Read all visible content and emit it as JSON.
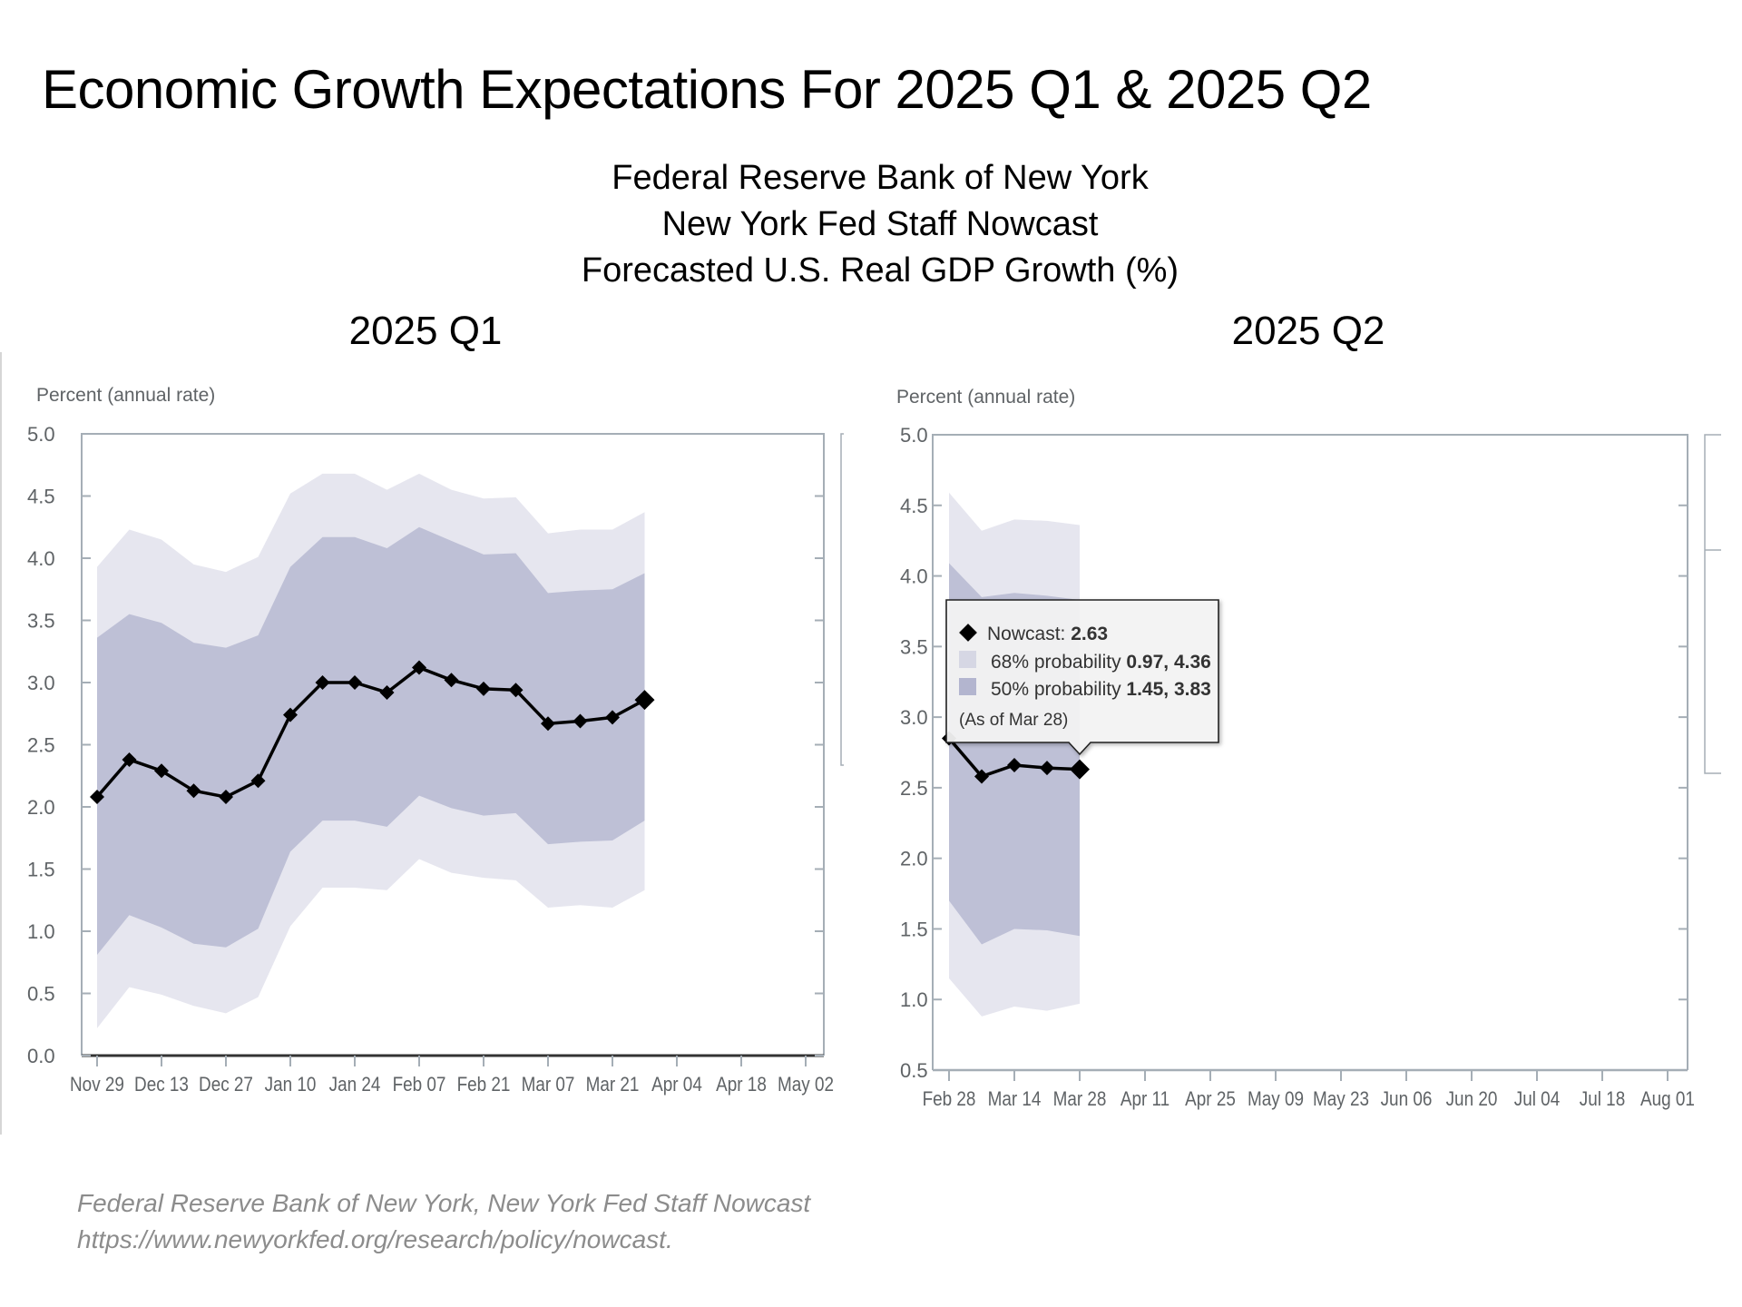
{
  "slide": {
    "title": "Economic Growth Expectations For 2025 Q1 & 2025 Q2",
    "subtitle_lines": [
      "Federal Reserve Bank of New York",
      "New York Fed Staff Nowcast",
      "Forecasted U.S. Real GDP Growth (%)"
    ],
    "panel_titles": [
      "2025 Q1",
      "2025 Q2"
    ],
    "footer_lines": [
      "Federal Reserve Bank of New York, New York Fed Staff Nowcast",
      "https://www.newyorkfed.org/research/policy/nowcast."
    ]
  },
  "colors": {
    "band_68": "#E6E6EF",
    "band_50": "#BEC0D6",
    "line": "#000000",
    "axis": "#A5AEB6",
    "axis_text": "#5F6366"
  },
  "tooltip": {
    "nowcast_label": "Nowcast: ",
    "nowcast_value": "2.63",
    "p68_label": "68% probability ",
    "p68_value": "0.97, 4.36",
    "p50_label": "50% probability ",
    "p50_value": "1.45, 3.83",
    "as_of": "(As of Mar 28)"
  },
  "chart_data": [
    {
      "type": "area",
      "title": "2025 Q1",
      "ylabel": "Percent (annual rate)",
      "xlabel": "",
      "ylim": [
        0.0,
        5.0
      ],
      "yticks": [
        "0.0",
        "0.5",
        "1.0",
        "1.5",
        "2.0",
        "2.5",
        "3.0",
        "3.5",
        "4.0",
        "4.5",
        "5.0"
      ],
      "xticks": [
        "Nov 29",
        "Dec 13",
        "Dec 27",
        "Jan 10",
        "Jan 24",
        "Feb 07",
        "Feb 21",
        "Mar 07",
        "Mar 21",
        "Apr 04",
        "Apr 18",
        "May 02"
      ],
      "x": [
        "Nov 29",
        "Dec 06",
        "Dec 13",
        "Dec 20",
        "Dec 27",
        "Jan 03",
        "Jan 10",
        "Jan 17",
        "Jan 24",
        "Jan 31",
        "Feb 07",
        "Feb 14",
        "Feb 21",
        "Feb 28",
        "Mar 07",
        "Mar 14",
        "Mar 21",
        "Mar 28"
      ],
      "series": [
        {
          "name": "Nowcast",
          "values": [
            2.08,
            2.38,
            2.29,
            2.13,
            2.08,
            2.21,
            2.74,
            3.0,
            3.0,
            2.92,
            3.12,
            3.02,
            2.95,
            2.94,
            2.67,
            2.69,
            2.72,
            2.86
          ]
        },
        {
          "name": "68% probability low",
          "values": [
            0.22,
            0.55,
            0.49,
            0.4,
            0.34,
            0.47,
            1.04,
            1.35,
            1.35,
            1.33,
            1.58,
            1.47,
            1.43,
            1.41,
            1.19,
            1.21,
            1.19,
            1.33
          ]
        },
        {
          "name": "68% probability high",
          "values": [
            3.93,
            4.23,
            4.15,
            3.95,
            3.89,
            4.01,
            4.52,
            4.68,
            4.68,
            4.55,
            4.68,
            4.55,
            4.48,
            4.49,
            4.2,
            4.23,
            4.23,
            4.37
          ]
        },
        {
          "name": "50% probability low",
          "values": [
            0.81,
            1.13,
            1.03,
            0.9,
            0.87,
            1.02,
            1.64,
            1.89,
            1.89,
            1.84,
            2.09,
            1.99,
            1.93,
            1.95,
            1.7,
            1.72,
            1.73,
            1.89
          ]
        },
        {
          "name": "50% probability high",
          "values": [
            3.36,
            3.55,
            3.48,
            3.32,
            3.28,
            3.38,
            3.93,
            4.17,
            4.17,
            4.08,
            4.25,
            4.14,
            4.03,
            4.04,
            3.72,
            3.74,
            3.75,
            3.88
          ]
        }
      ],
      "grid": false,
      "legend": "none"
    },
    {
      "type": "area",
      "title": "2025 Q2",
      "ylabel": "Percent (annual rate)",
      "xlabel": "",
      "ylim": [
        0.5,
        5.0
      ],
      "yticks": [
        "0.5",
        "1.0",
        "1.5",
        "2.0",
        "2.5",
        "3.0",
        "3.5",
        "4.0",
        "4.5",
        "5.0"
      ],
      "xticks": [
        "Feb 28",
        "Mar 14",
        "Mar 28",
        "Apr 11",
        "Apr 25",
        "May 09",
        "May 23",
        "Jun 06",
        "Jun 20",
        "Jul 04",
        "Jul 18",
        "Aug 01"
      ],
      "x": [
        "Feb 28",
        "Mar 07",
        "Mar 14",
        "Mar 21",
        "Mar 28"
      ],
      "series": [
        {
          "name": "Nowcast",
          "values": [
            2.85,
            2.58,
            2.66,
            2.64,
            2.63
          ]
        },
        {
          "name": "68% probability low",
          "values": [
            1.15,
            0.88,
            0.95,
            0.92,
            0.97
          ]
        },
        {
          "name": "68% probability high",
          "values": [
            4.59,
            4.32,
            4.4,
            4.39,
            4.36
          ]
        },
        {
          "name": "50% probability low",
          "values": [
            1.7,
            1.39,
            1.5,
            1.49,
            1.45
          ]
        },
        {
          "name": "50% probability high",
          "values": [
            4.09,
            3.85,
            3.88,
            3.86,
            3.83
          ]
        }
      ],
      "grid": false,
      "legend": "tooltip",
      "annotation": "Tooltip at Mar 28: Nowcast 2.63; 68% probability 0.97, 4.36; 50% probability 1.45, 3.83"
    }
  ]
}
